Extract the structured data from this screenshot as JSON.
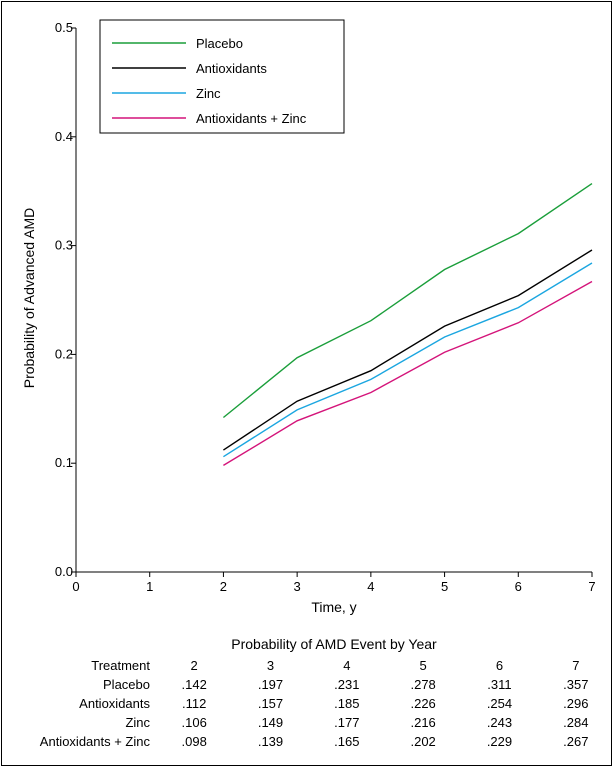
{
  "chart_data": {
    "type": "line",
    "title": "",
    "xlabel": "Time, y",
    "ylabel": "Probability of Advanced AMD",
    "xlim": [
      0,
      7
    ],
    "ylim": [
      0,
      0.5
    ],
    "x_ticks": [
      0,
      1,
      2,
      3,
      4,
      5,
      6,
      7
    ],
    "y_ticks": [
      0.0,
      0.1,
      0.2,
      0.3,
      0.4,
      0.5
    ],
    "y_tick_labels": [
      "0.0",
      "0.1",
      "0.2",
      "0.3",
      "0.4",
      "0.5"
    ],
    "grid": false,
    "legend_position": "top-left",
    "x": [
      2,
      3,
      4,
      5,
      6,
      7
    ],
    "series": [
      {
        "name": "Placebo",
        "color": "#1a9e3a",
        "values": [
          0.142,
          0.197,
          0.231,
          0.278,
          0.311,
          0.357
        ]
      },
      {
        "name": "Antioxidants",
        "color": "#000000",
        "values": [
          0.112,
          0.157,
          0.185,
          0.226,
          0.254,
          0.296
        ]
      },
      {
        "name": "Zinc",
        "color": "#1ba6e0",
        "values": [
          0.106,
          0.149,
          0.177,
          0.216,
          0.243,
          0.284
        ]
      },
      {
        "name": "Antioxidants + Zinc",
        "color": "#d4147a",
        "values": [
          0.098,
          0.139,
          0.165,
          0.202,
          0.229,
          0.267
        ]
      }
    ]
  },
  "table": {
    "title": "Probability of AMD Event by Year",
    "header_label": "Treatment",
    "years": [
      "2",
      "3",
      "4",
      "5",
      "6",
      "7"
    ],
    "rows": [
      {
        "label": "Placebo",
        "values": [
          ".142",
          ".197",
          ".231",
          ".278",
          ".311",
          ".357"
        ]
      },
      {
        "label": "Antioxidants",
        "values": [
          ".112",
          ".157",
          ".185",
          ".226",
          ".254",
          ".296"
        ]
      },
      {
        "label": "Zinc",
        "values": [
          ".106",
          ".149",
          ".177",
          ".216",
          ".243",
          ".284"
        ]
      },
      {
        "label": "Antioxidants + Zinc",
        "values": [
          ".098",
          ".139",
          ".165",
          ".202",
          ".229",
          ".267"
        ]
      }
    ]
  }
}
